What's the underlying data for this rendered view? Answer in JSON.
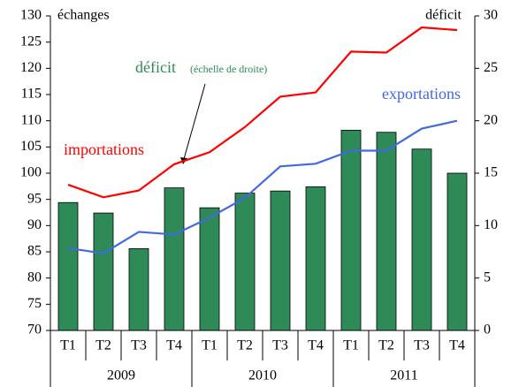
{
  "chart_data": {
    "type": "bar_line",
    "y_label": "échanges",
    "y2_label": "déficit",
    "categories": [
      "T1",
      "T2",
      "T3",
      "T4",
      "T1",
      "T2",
      "T3",
      "T4",
      "T1",
      "T2",
      "T3",
      "T4"
    ],
    "years": [
      "2009",
      "2010",
      "2011"
    ],
    "series": [
      {
        "name": "déficit",
        "type": "bar",
        "axis": "y2",
        "color": "#2e8b57",
        "values": [
          12.2,
          11.2,
          7.8,
          13.6,
          11.7,
          13.1,
          13.3,
          13.7,
          19.1,
          18.9,
          17.3,
          15.0
        ]
      },
      {
        "name": "importations",
        "type": "line",
        "color": "#ff0000",
        "values": [
          97.8,
          95.4,
          96.7,
          101.7,
          104.0,
          108.8,
          114.6,
          115.4,
          123.2,
          123.0,
          127.8,
          127.3
        ]
      },
      {
        "name": "exportations",
        "type": "line",
        "color": "#4169e1",
        "values": [
          85.7,
          84.7,
          88.8,
          88.3,
          91.5,
          95.3,
          101.3,
          101.8,
          104.3,
          104.3,
          108.5,
          110.0
        ]
      }
    ],
    "annotation": "(échelle de droite)",
    "ylim": [
      70,
      130
    ],
    "yticks": [
      70,
      75,
      80,
      85,
      90,
      95,
      100,
      105,
      110,
      115,
      120,
      125,
      130
    ],
    "y2lim": [
      0,
      30
    ],
    "y2ticks": [
      0,
      5,
      10,
      15,
      20,
      25,
      30
    ]
  }
}
